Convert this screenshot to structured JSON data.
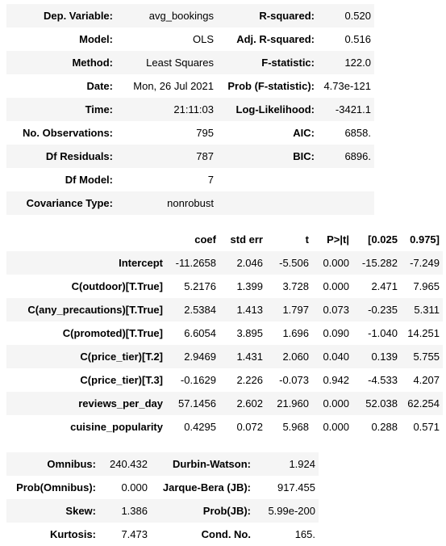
{
  "summary": [
    [
      "Dep. Variable:",
      "avg_bookings",
      "R-squared:",
      "0.520"
    ],
    [
      "Model:",
      "OLS",
      "Adj. R-squared:",
      "0.516"
    ],
    [
      "Method:",
      "Least Squares",
      "F-statistic:",
      "122.0"
    ],
    [
      "Date:",
      "Mon, 26 Jul 2021",
      "Prob (F-statistic):",
      "4.73e-121"
    ],
    [
      "Time:",
      "21:11:03",
      "Log-Likelihood:",
      "-3421.1"
    ],
    [
      "No. Observations:",
      "795",
      "AIC:",
      "6858."
    ],
    [
      "Df Residuals:",
      "787",
      "BIC:",
      "6896."
    ],
    [
      "Df Model:",
      "7",
      "",
      ""
    ],
    [
      "Covariance Type:",
      "nonrobust",
      "",
      ""
    ]
  ],
  "coef_headers": [
    "",
    "coef",
    "std err",
    "t",
    "P>|t|",
    "[0.025",
    "0.975]"
  ],
  "coef_rows": [
    [
      "Intercept",
      "-11.2658",
      "2.046",
      "-5.506",
      "0.000",
      "-15.282",
      "-7.249"
    ],
    [
      "C(outdoor)[T.True]",
      "5.2176",
      "1.399",
      "3.728",
      "0.000",
      "2.471",
      "7.965"
    ],
    [
      "C(any_precautions)[T.True]",
      "2.5384",
      "1.413",
      "1.797",
      "0.073",
      "-0.235",
      "5.311"
    ],
    [
      "C(promoted)[T.True]",
      "6.6054",
      "3.895",
      "1.696",
      "0.090",
      "-1.040",
      "14.251"
    ],
    [
      "C(price_tier)[T.2]",
      "2.9469",
      "1.431",
      "2.060",
      "0.040",
      "0.139",
      "5.755"
    ],
    [
      "C(price_tier)[T.3]",
      "-0.1629",
      "2.226",
      "-0.073",
      "0.942",
      "-4.533",
      "4.207"
    ],
    [
      "reviews_per_day",
      "57.1456",
      "2.602",
      "21.960",
      "0.000",
      "52.038",
      "62.254"
    ],
    [
      "cuisine_popularity",
      "0.4295",
      "0.072",
      "5.968",
      "0.000",
      "0.288",
      "0.571"
    ]
  ],
  "diagnostics": [
    [
      "Omnibus:",
      "240.432",
      "Durbin-Watson:",
      "1.924"
    ],
    [
      "Prob(Omnibus):",
      "0.000",
      "Jarque-Bera (JB):",
      "917.455"
    ],
    [
      "Skew:",
      "1.386",
      "Prob(JB):",
      "5.99e-200"
    ],
    [
      "Kurtosis:",
      "7.473",
      "Cond. No.",
      "165."
    ]
  ]
}
